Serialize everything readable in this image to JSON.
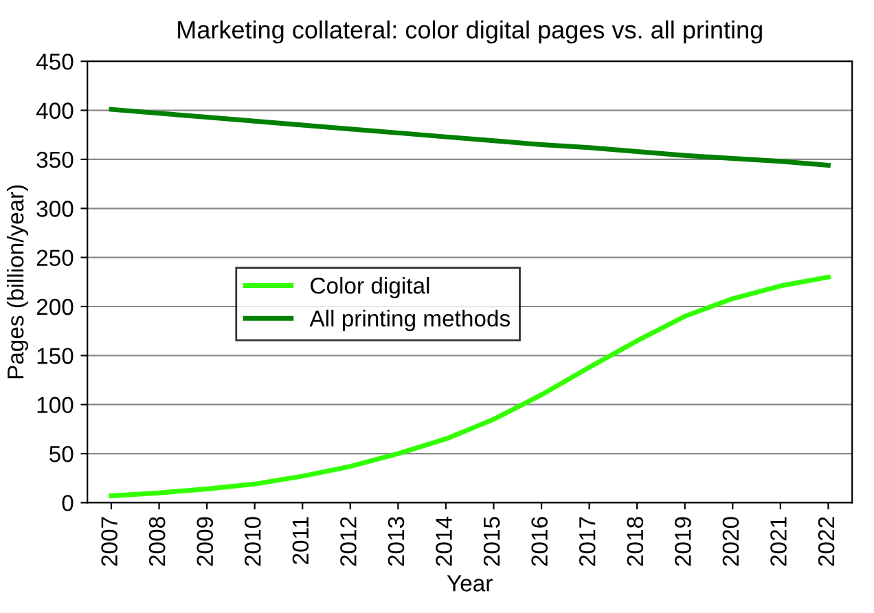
{
  "chart_data": {
    "type": "line",
    "title": "Marketing collateral: color digital pages vs. all printing",
    "xlabel": "Year",
    "ylabel": "Pages (billion/year)",
    "categories": [
      "2007",
      "2008",
      "2009",
      "2010",
      "2011",
      "2012",
      "2013",
      "2014",
      "2015",
      "2016",
      "2017",
      "2018",
      "2019",
      "2020",
      "2021",
      "2022"
    ],
    "series": [
      {
        "name": "Color digital",
        "color": "#33ff00",
        "values": [
          7,
          10,
          14,
          19,
          27,
          37,
          50,
          65,
          85,
          110,
          138,
          165,
          190,
          208,
          221,
          230
        ]
      },
      {
        "name": "All printing methods",
        "color": "#008000",
        "values": [
          401,
          397,
          393,
          389,
          385,
          381,
          377,
          373,
          369,
          365,
          362,
          358,
          354,
          351,
          348,
          344
        ]
      }
    ],
    "ylim": [
      0,
      450
    ],
    "yticks": [
      0,
      50,
      100,
      150,
      200,
      250,
      300,
      350,
      400,
      450
    ],
    "grid": "y",
    "legend": "center",
    "marker": "none",
    "line_style": "solid"
  }
}
